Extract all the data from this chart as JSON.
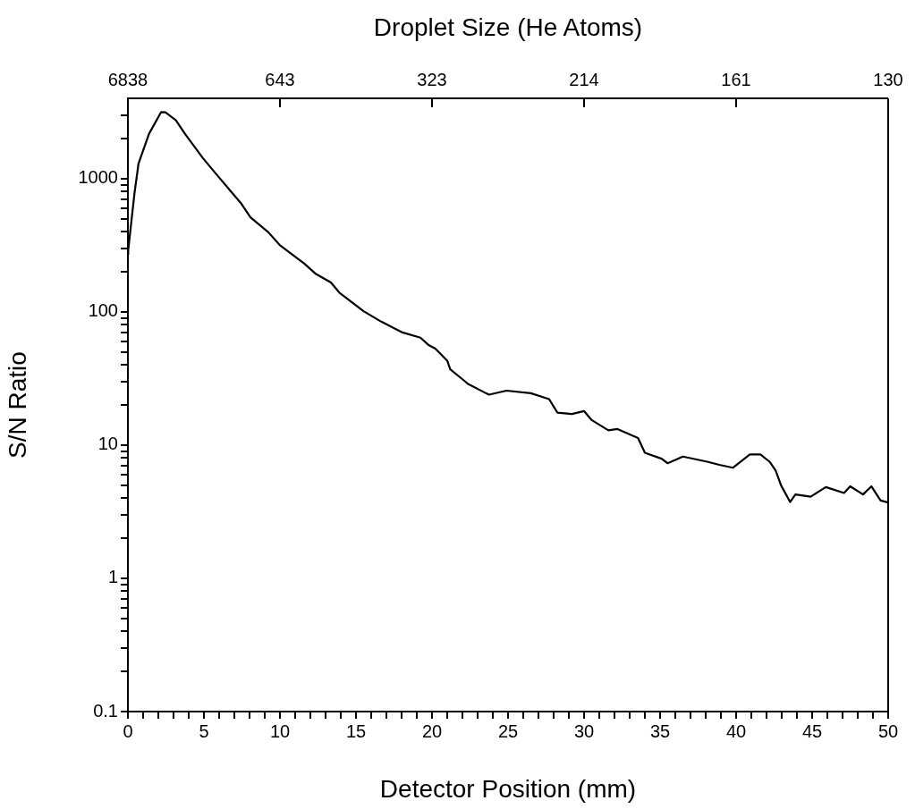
{
  "chart_data": {
    "type": "line",
    "xlabel": "Detector Position (mm)",
    "ylabel": "S/N Ratio",
    "x2label": "Droplet Size (He Atoms)",
    "xlim": [
      0,
      50
    ],
    "xticks": [
      0,
      {
        "value": 1,
        "label": null
      },
      {
        "value": 2,
        "label": null
      },
      {
        "value": 3,
        "label": null
      },
      {
        "value": 4,
        "label": null
      },
      5,
      {
        "value": 6,
        "label": null
      },
      {
        "value": 7,
        "label": null
      },
      {
        "value": 8,
        "label": null
      },
      {
        "value": 9,
        "label": null
      },
      10,
      {
        "value": 11,
        "label": null
      },
      {
        "value": 12,
        "label": null
      },
      {
        "value": 13,
        "label": null
      },
      {
        "value": 14,
        "label": null
      },
      15,
      {
        "value": 16,
        "label": null
      },
      {
        "value": 17,
        "label": null
      },
      {
        "value": 18,
        "label": null
      },
      {
        "value": 19,
        "label": null
      },
      20,
      {
        "value": 21,
        "label": null
      },
      {
        "value": 22,
        "label": null
      },
      {
        "value": 23,
        "label": null
      },
      {
        "value": 24,
        "label": null
      },
      25,
      {
        "value": 26,
        "label": null
      },
      {
        "value": 27,
        "label": null
      },
      {
        "value": 28,
        "label": null
      },
      {
        "value": 29,
        "label": null
      },
      30,
      {
        "value": 31,
        "label": null
      },
      {
        "value": 32,
        "label": null
      },
      {
        "value": 33,
        "label": null
      },
      {
        "value": 34,
        "label": null
      },
      35,
      {
        "value": 36,
        "label": null
      },
      {
        "value": 37,
        "label": null
      },
      {
        "value": 38,
        "label": null
      },
      {
        "value": 39,
        "label": null
      },
      40,
      {
        "value": 41,
        "label": null
      },
      {
        "value": 42,
        "label": null
      },
      {
        "value": 43,
        "label": null
      },
      {
        "value": 44,
        "label": null
      },
      45,
      {
        "value": 46,
        "label": null
      },
      {
        "value": 47,
        "label": null
      },
      {
        "value": 48,
        "label": null
      },
      {
        "value": 49,
        "label": null
      },
      50
    ],
    "annotations": [
      "6838",
      "643",
      "323",
      "214",
      "161",
      "130"
    ],
    "ylim": [
      0.1,
      4000
    ],
    "yticks": [
      0.1,
      {
        "value": 0.2,
        "label": null
      },
      {
        "value": 0.3,
        "label": null
      },
      {
        "value": 0.4,
        "label": null
      },
      {
        "value": 0.5,
        "label": null
      },
      {
        "value": 0.6,
        "label": null
      },
      {
        "value": 0.7,
        "label": null
      },
      {
        "value": 0.8,
        "label": null
      },
      {
        "value": 0.9,
        "label": null
      },
      1,
      {
        "value": 2,
        "label": null
      },
      {
        "value": 3,
        "label": null
      },
      {
        "value": 4,
        "label": null
      },
      {
        "value": 5,
        "label": null
      },
      {
        "value": 6,
        "label": null
      },
      {
        "value": 7,
        "label": null
      },
      {
        "value": 8,
        "label": null
      },
      {
        "value": 9,
        "label": null
      },
      10,
      {
        "value": 20,
        "label": null
      },
      {
        "value": 30,
        "label": null
      },
      {
        "value": 40,
        "label": null
      },
      {
        "value": 50,
        "label": null
      },
      {
        "value": 60,
        "label": null
      },
      {
        "value": 70,
        "label": null
      },
      {
        "value": 80,
        "label": null
      },
      {
        "value": 90,
        "label": null
      },
      100,
      {
        "value": 200,
        "label": null
      },
      {
        "value": 300,
        "label": null
      },
      {
        "value": 400,
        "label": null
      },
      {
        "value": 500,
        "label": null
      },
      {
        "value": 600,
        "label": null
      },
      {
        "value": 700,
        "label": null
      },
      {
        "value": 800,
        "label": null
      },
      {
        "value": 900,
        "label": null
      },
      1000,
      {
        "value": 2000,
        "label": null
      },
      {
        "value": 3000,
        "label": null
      }
    ],
    "log": true,
    "grid": false,
    "legend": false,
    "marker": "none",
    "line_style": "solid",
    "series": [
      {
        "color": "#000000",
        "x": [
          0,
          0.02,
          0.43,
          0.7,
          1.39,
          2.18,
          2.47,
          3.16,
          3.75,
          4.92,
          5.9,
          7.47,
          8.06,
          9.24,
          10.02,
          11.6,
          12.37,
          13.35,
          13.94,
          15.5,
          16.69,
          18.06,
          19.24,
          19.8,
          20.22,
          21.0,
          21.2,
          22.18,
          22.4,
          23.55,
          23.75,
          24.9,
          26.5,
          27.7,
          28.25,
          29.2,
          30.0,
          30.5,
          31.6,
          32.2,
          33.55,
          34.0,
          35.1,
          35.5,
          36.5,
          38.1,
          38.9,
          39.8,
          40.9,
          41.6,
          42.2,
          42.6,
          42.96,
          43.55,
          43.9,
          44.9,
          45.9,
          47.1,
          47.5,
          48.35,
          48.9,
          49.5,
          50
        ],
        "values": [
          270,
          290,
          770,
          1300,
          2170,
          3150,
          3140,
          2730,
          2170,
          1430,
          1050,
          646,
          512,
          395,
          314,
          230,
          192,
          166,
          138,
          101,
          84,
          70,
          64,
          56,
          53,
          43,
          37,
          30,
          28.6,
          24.5,
          23.9,
          25.6,
          24.5,
          22.1,
          17.5,
          17.1,
          18,
          15.4,
          12.9,
          13.2,
          11.3,
          8.75,
          7.9,
          7.3,
          8.2,
          7.5,
          7.1,
          6.76,
          8.5,
          8.5,
          7.5,
          6.45,
          4.97,
          3.74,
          4.26,
          4.1,
          4.84,
          4.37,
          4.9,
          4.26,
          4.9,
          3.84,
          3.7
        ]
      }
    ]
  }
}
